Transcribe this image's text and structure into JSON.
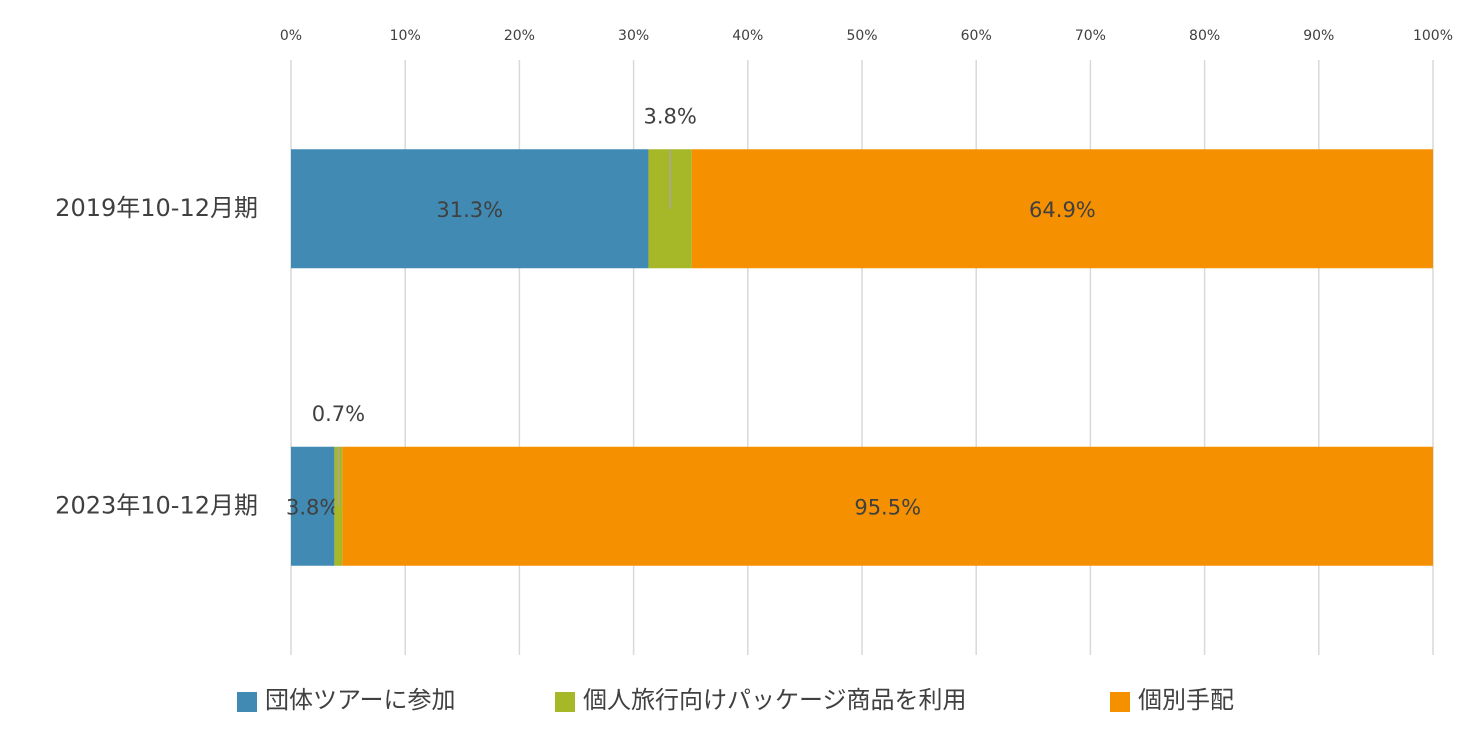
{
  "chart_data": {
    "type": "stacked-bar-horizontal",
    "categories": [
      "2019年10-12月期",
      "2023年10-12月期"
    ],
    "series": [
      {
        "name": "団体ツアーに参加",
        "color": "#418ab3",
        "values": [
          31.3,
          3.8
        ],
        "value_labels": [
          "31.3%",
          "3.8%"
        ]
      },
      {
        "name": "個人旅行向けパッケージ商品を利用",
        "color": "#a6b727",
        "values": [
          3.8,
          0.7
        ],
        "value_labels": [
          "3.8%",
          "0.7%"
        ]
      },
      {
        "name": "個別手配",
        "color": "#f59100",
        "values": [
          64.9,
          95.5
        ],
        "value_labels": [
          "64.9%",
          "95.5%"
        ]
      }
    ],
    "xlim": [
      0,
      100
    ],
    "xticks": [
      {
        "value": 0,
        "label": "0%"
      },
      {
        "value": 10,
        "label": "10%"
      },
      {
        "value": 20,
        "label": "20%"
      },
      {
        "value": 30,
        "label": "30%"
      },
      {
        "value": 40,
        "label": "40%"
      },
      {
        "value": 50,
        "label": "50%"
      },
      {
        "value": 60,
        "label": "60%"
      },
      {
        "value": 70,
        "label": "70%"
      },
      {
        "value": 80,
        "label": "80%"
      },
      {
        "value": 90,
        "label": "90%"
      },
      {
        "value": 100,
        "label": "100%"
      }
    ],
    "grid": true,
    "legend": "bottom"
  }
}
